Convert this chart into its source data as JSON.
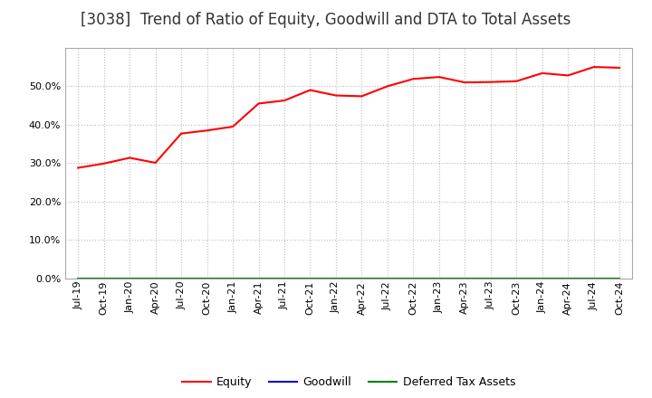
{
  "title": "[3038]  Trend of Ratio of Equity, Goodwill and DTA to Total Assets",
  "x_labels": [
    "Jul-19",
    "Oct-19",
    "Jan-20",
    "Apr-20",
    "Jul-20",
    "Oct-20",
    "Jan-21",
    "Apr-21",
    "Jul-21",
    "Oct-21",
    "Jan-22",
    "Apr-22",
    "Jul-22",
    "Oct-22",
    "Jan-23",
    "Apr-23",
    "Jul-23",
    "Oct-23",
    "Jan-24",
    "Apr-24",
    "Jul-24",
    "Oct-24"
  ],
  "equity_values": [
    0.288,
    0.299,
    0.314,
    0.301,
    0.377,
    0.385,
    0.395,
    0.455,
    0.463,
    0.49,
    0.476,
    0.474,
    0.5,
    0.519,
    0.524,
    0.51,
    0.511,
    0.513,
    0.534,
    0.528,
    0.55,
    0.548
  ],
  "goodwill_values": [
    0.0,
    0.0,
    0.0,
    0.0,
    0.0,
    0.0,
    0.0,
    0.0,
    0.0,
    0.0,
    0.0,
    0.0,
    0.0,
    0.0,
    0.0,
    0.0,
    0.0,
    0.0,
    0.0,
    0.0,
    0.0,
    0.0
  ],
  "dta_values": [
    0.0,
    0.0,
    0.0,
    0.0,
    0.0,
    0.0,
    0.0,
    0.0,
    0.0,
    0.0,
    0.0,
    0.0,
    0.0,
    0.0,
    0.0,
    0.0,
    0.0,
    0.0,
    0.0,
    0.0,
    0.0,
    0.0
  ],
  "equity_color": "#FF0000",
  "goodwill_color": "#0000CC",
  "dta_color": "#008000",
  "background_color": "#FFFFFF",
  "ylim": [
    0.0,
    0.6
  ],
  "yticks": [
    0.0,
    0.1,
    0.2,
    0.3,
    0.4,
    0.5
  ],
  "grid_color": "#BBBBBB",
  "title_fontsize": 12,
  "tick_fontsize": 8,
  "legend_labels": [
    "Equity",
    "Goodwill",
    "Deferred Tax Assets"
  ],
  "legend_fontsize": 9
}
